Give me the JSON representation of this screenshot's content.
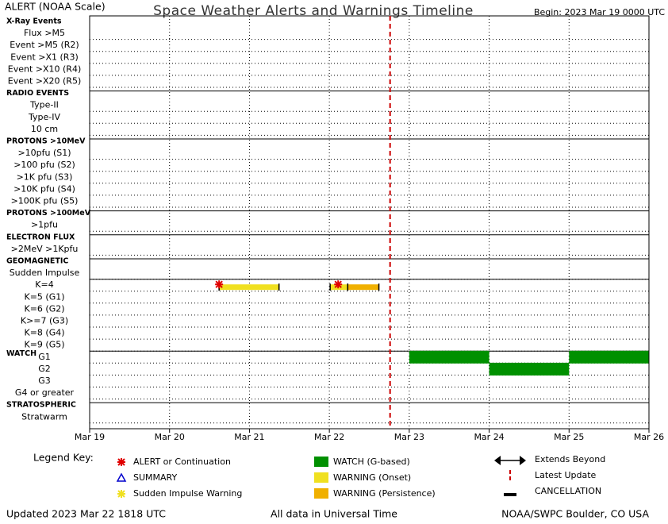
{
  "chart_data": {
    "type": "timeline",
    "header": "ALERT (NOAA Scale)",
    "title": "Space Weather Alerts and Warnings Timeline",
    "begin": "Begin: 2023 Mar 19 0000 UTC",
    "xlim": [
      0,
      7
    ],
    "xticks": [
      {
        "value": 0,
        "label": "Mar 19"
      },
      {
        "value": 1,
        "label": "Mar 20"
      },
      {
        "value": 2,
        "label": "Mar 21"
      },
      {
        "value": 3,
        "label": "Mar 22"
      },
      {
        "value": 4,
        "label": "Mar 23"
      },
      {
        "value": 5,
        "label": "Mar 24"
      },
      {
        "value": 6,
        "label": "Mar 25"
      },
      {
        "value": 7,
        "label": "Mar 26"
      }
    ],
    "latest_update": 3.76,
    "sections": [
      {
        "title": "X-Ray Events",
        "rows": [
          {
            "label": "Flux >M5"
          },
          {
            "label": "Event >M5 (R2)"
          },
          {
            "label": "Event >X1 (R3)"
          },
          {
            "label": "Event >X10 (R4)"
          },
          {
            "label": "Event >X20 (R5)"
          }
        ]
      },
      {
        "title": "RADIO EVENTS",
        "rows": [
          {
            "label": "Type-II"
          },
          {
            "label": "Type-IV"
          },
          {
            "label": "10 cm"
          }
        ]
      },
      {
        "title": "PROTONS >10MeV",
        "rows": [
          {
            "label": ">10pfu (S1)"
          },
          {
            "label": ">100 pfu (S2)"
          },
          {
            "label": ">1K pfu (S3)"
          },
          {
            "label": ">10K pfu (S4)"
          },
          {
            "label": ">100K pfu (S5)"
          }
        ]
      },
      {
        "title": "PROTONS >100MeV",
        "rows": [
          {
            "label": ">1pfu"
          }
        ]
      },
      {
        "title": "ELECTRON FLUX",
        "rows": [
          {
            "label": ">2MeV >1Kpfu"
          }
        ]
      },
      {
        "title": "GEOMAGNETIC",
        "rows": [
          {
            "label": "Sudden Impulse"
          },
          {
            "label": "K=4",
            "bars": [
              {
                "start": 1.62,
                "end": 2.37,
                "color": "#f0e020"
              },
              {
                "start": 3.01,
                "end": 3.23,
                "color": "#f0e020"
              },
              {
                "start": 3.23,
                "end": 3.62,
                "color": "#f0b000"
              }
            ],
            "alerts": [
              1.62,
              3.11
            ]
          },
          {
            "label": "K=5 (G1)"
          },
          {
            "label": "K=6 (G2)"
          },
          {
            "label": "K>=7 (G3)"
          },
          {
            "label": "K=8 (G4)"
          },
          {
            "label": "K=9 (G5)"
          }
        ]
      },
      {
        "title": "WATCH",
        "rows": [
          {
            "label": "G1",
            "bars": [
              {
                "start": 4.0,
                "end": 5.0,
                "color": "#009000"
              },
              {
                "start": 6.0,
                "end": 7.0,
                "color": "#009000"
              }
            ]
          },
          {
            "label": "G2",
            "bars": [
              {
                "start": 5.0,
                "end": 6.0,
                "color": "#009000"
              }
            ]
          },
          {
            "label": "G3"
          },
          {
            "label": "G4 or greater"
          }
        ]
      },
      {
        "title": "STRATOSPHERIC",
        "rows": [
          {
            "label": "Stratwarm"
          }
        ]
      }
    ],
    "legend_title": "Legend Key:",
    "legend": [
      {
        "label": "ALERT or Continuation",
        "symbol": "star",
        "color": "#e00000"
      },
      {
        "label": "SUMMARY",
        "symbol": "triangle",
        "color": "#0000cc"
      },
      {
        "label": "Sudden Impulse Warning",
        "symbol": "star",
        "color": "#f0e020"
      },
      {
        "label": "WATCH (G-based)",
        "symbol": "box",
        "color": "#009000"
      },
      {
        "label": "WARNING (Onset)",
        "symbol": "box",
        "color": "#f0e020"
      },
      {
        "label": "WARNING (Persistence)",
        "symbol": "box",
        "color": "#f0b000"
      },
      {
        "label": "Extends Beyond",
        "symbol": "arrows",
        "color": "#000000"
      },
      {
        "label": "Latest Update",
        "symbol": "dash",
        "color": "#cc0000"
      },
      {
        "label": "CANCELLATION",
        "symbol": "bar",
        "color": "#000000"
      }
    ],
    "footer": [
      "Updated 2023 Mar 22 1818 UTC",
      "All data in Universal Time",
      "NOAA/SWPC Boulder, CO USA"
    ]
  }
}
